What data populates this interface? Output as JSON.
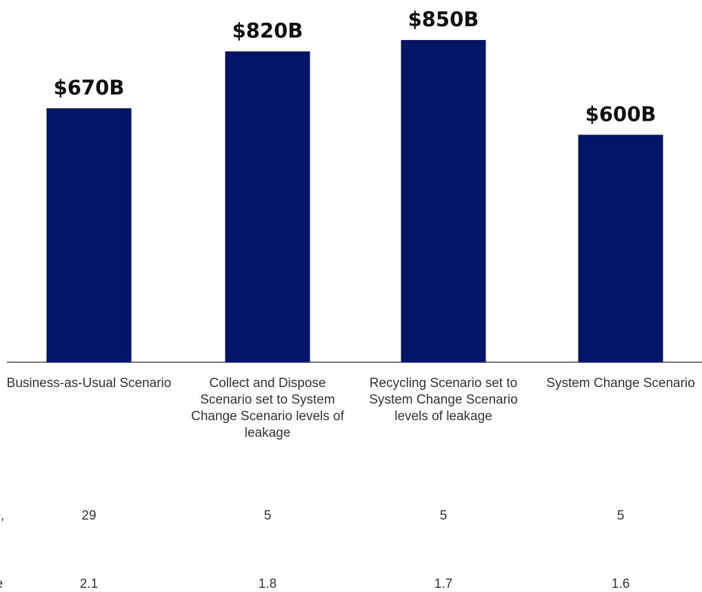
{
  "chart_data": {
    "type": "bar",
    "categories": [
      "Business-as-Usual Scenario",
      "Collect and Dispose Scenario set to System Change Scenario levels of leakage",
      "Recycling Scenario set to System Change Scenario levels of leakage",
      "System Change Scenario"
    ],
    "values": [
      670,
      820,
      850,
      600
    ],
    "value_labels": [
      "$670B",
      "$820B",
      "$850B",
      "$600B"
    ],
    "color": "#041466"
  },
  "table": {
    "rows": [
      {
        "label": "e,",
        "values": [
          29,
          5,
          5,
          5
        ]
      },
      {
        "label": "e",
        "values": [
          2.1,
          1.8,
          1.7,
          1.6
        ]
      }
    ]
  }
}
